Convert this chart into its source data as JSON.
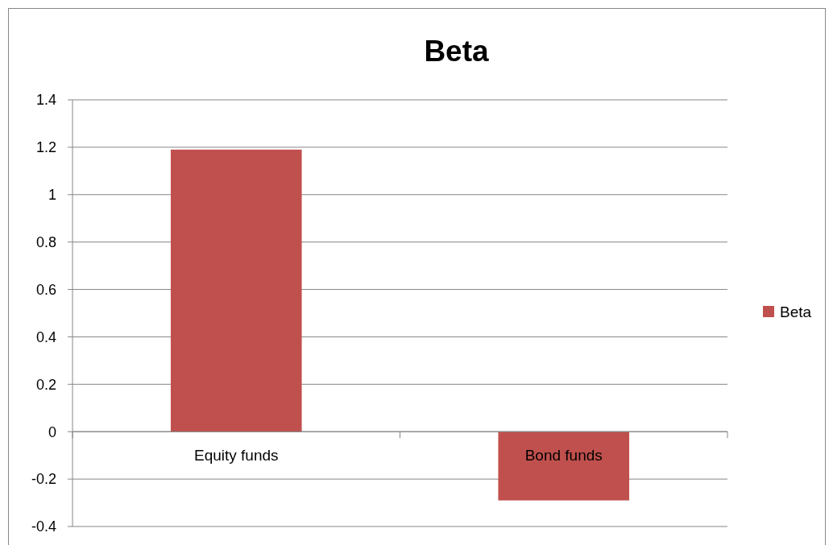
{
  "chart_data": {
    "type": "bar",
    "title": "Beta",
    "categories": [
      "Equity funds",
      "Bond funds"
    ],
    "series": [
      {
        "name": "Beta",
        "color": "#c0504d",
        "values": [
          1.19,
          -0.29
        ]
      }
    ],
    "ylim": [
      -0.4,
      1.4
    ],
    "yticks": [
      -0.4,
      -0.2,
      0,
      0.2,
      0.4,
      0.6,
      0.8,
      1,
      1.2,
      1.4
    ],
    "grid": "y",
    "legend": "right"
  }
}
